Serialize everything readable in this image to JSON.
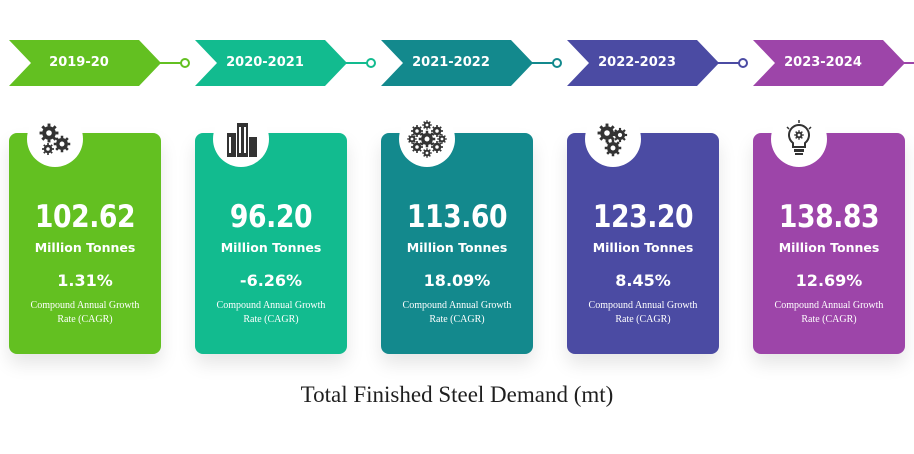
{
  "chart_data": {
    "type": "table",
    "title": "Total Finished Steel Demand (mt)",
    "unit_label": "Million Tonnes",
    "cagr_label": "Compound Annual Growth Rate (CAGR)",
    "categories": [
      "2019-20",
      "2020-2021",
      "2021-2022",
      "2022-2023",
      "2023-2024"
    ],
    "series": [
      {
        "values": [
          102.62,
          96.2,
          113.6,
          123.2,
          138.83
        ]
      },
      {
        "values": [
          1.31,
          -6.26,
          18.09,
          8.45,
          12.69
        ]
      }
    ],
    "value_labels": [
      "102.62",
      "96.20",
      "113.60",
      "123.20",
      "138.83"
    ],
    "cagr_labels": [
      "1.31%",
      "-6.26%",
      "18.09%",
      "8.45%",
      "12.69%"
    ],
    "colors": [
      "#63c021",
      "#12bb8f",
      "#13898d",
      "#4b4ba3",
      "#9d45a9"
    ],
    "icons": [
      "gears-icon",
      "buildings-icon",
      "gear-cluster-icon",
      "gear-trio-icon",
      "lightbulb-gear-icon"
    ]
  }
}
